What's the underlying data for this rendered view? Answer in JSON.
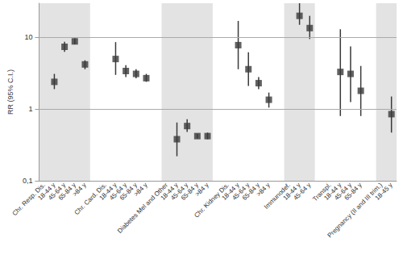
{
  "chart_data": {
    "type": "scatter",
    "y_label": "RR (95% C.I.)",
    "categories": [
      "Chr. Resp. Dis.",
      "18-44 y",
      "45-64 y",
      "65-84 y",
      ">84 y",
      null,
      "Chr. Card. Dis.",
      "18-44 y",
      "45-64 y",
      "65-84 y",
      ">84 y",
      null,
      "Diabetes Mel and Other",
      "18-44 y",
      "45-64 y",
      "65-84 y",
      ">84 y",
      null,
      "Chr. Kidney Dis.",
      "18-44 y",
      "45-64 y",
      "65-84 y",
      ">84 y",
      null,
      "Immunodef.",
      "18-44 y",
      "45-64 y",
      null,
      "Transpl.",
      "18-44 y",
      "45-64 y",
      "65-84 y",
      null,
      "Pregnancy (II and III trim.)",
      "18-45 y"
    ],
    "values": [
      null,
      2.4,
      7.4,
      8.8,
      4.2,
      null,
      null,
      5.0,
      3.4,
      3.1,
      2.7,
      null,
      null,
      0.38,
      0.58,
      0.42,
      0.42,
      null,
      null,
      7.8,
      3.6,
      2.3,
      1.35,
      null,
      null,
      20,
      13.5,
      null,
      null,
      3.3,
      3.1,
      1.8,
      null,
      null,
      0.85
    ],
    "ci_low": [
      null,
      1.9,
      6.3,
      8.0,
      3.6,
      null,
      null,
      3.0,
      2.8,
      2.7,
      2.4,
      null,
      null,
      0.22,
      0.48,
      0.39,
      0.38,
      null,
      null,
      3.6,
      2.1,
      1.9,
      1.05,
      null,
      null,
      15,
      9.5,
      null,
      null,
      0.8,
      1.25,
      0.8,
      null,
      null,
      0.47
    ],
    "ci_high": [
      null,
      3.1,
      8.7,
      9.7,
      4.8,
      null,
      null,
      8.6,
      4.1,
      3.6,
      3.1,
      null,
      null,
      0.65,
      0.72,
      0.45,
      0.47,
      null,
      null,
      17,
      6.2,
      2.8,
      1.7,
      null,
      null,
      30,
      20,
      null,
      null,
      13,
      7.5,
      4.0,
      null,
      null,
      1.5
    ],
    "color": "#3a3a3a",
    "marker": "square",
    "log": "y",
    "ylim": [
      0.1,
      30
    ],
    "yticks": [
      {
        "value": 0.1,
        "label": "0,1"
      },
      1,
      10
    ],
    "grid": true
  }
}
